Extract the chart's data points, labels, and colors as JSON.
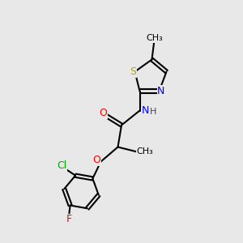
{
  "bg_color": "#e8e8e8",
  "bond_color": "#000000",
  "bond_lw": 1.5,
  "font_size": 9,
  "colors": {
    "N": "#0000ff",
    "O": "#ff0000",
    "S": "#aaaa00",
    "Cl": "#00aa00",
    "F": "#ff0000",
    "H": "#444444",
    "C": "#000000"
  }
}
